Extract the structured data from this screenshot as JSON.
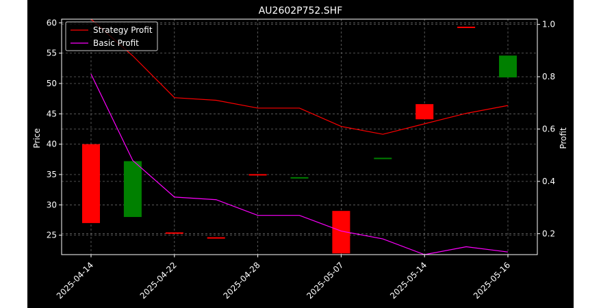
{
  "chart_data": {
    "type": "candlestick-line",
    "title": "AU2602P752.SHF",
    "ylabel_left": "Price",
    "ylabel_right": "Profit",
    "ylim_left": [
      21.8,
      60.6
    ],
    "ylim_right": [
      0.12,
      1.02
    ],
    "yticks_left": [
      25,
      30,
      35,
      40,
      45,
      50,
      55,
      60
    ],
    "yticks_right": [
      0.2,
      0.4,
      0.6,
      0.8,
      1.0
    ],
    "x_tick_labels": [
      "2025-04-14",
      "2025-04-22",
      "2025-04-28",
      "2025-05-07",
      "2025-05-14",
      "2025-05-16"
    ],
    "x_tick_index": [
      0,
      2,
      4,
      6,
      8,
      10
    ],
    "candles": [
      {
        "open": 40.0,
        "close": 27.0,
        "color": "#ff0000"
      },
      {
        "open": 28.0,
        "close": 37.2,
        "color": "#008000"
      },
      {
        "open": 25.4,
        "close": 25.3,
        "color": "#ff0000"
      },
      {
        "open": 24.6,
        "close": 24.5,
        "color": "#ff0000"
      },
      {
        "open": 35.0,
        "close": 34.9,
        "color": "#ff0000"
      },
      {
        "open": 34.4,
        "close": 34.5,
        "color": "#008000"
      },
      {
        "open": 29.0,
        "close": 22.0,
        "color": "#ff0000"
      },
      {
        "open": 37.6,
        "close": 37.7,
        "color": "#008000"
      },
      {
        "open": 46.6,
        "close": 44.1,
        "color": "#ff0000"
      },
      {
        "open": 59.3,
        "close": 59.2,
        "color": "#ff0000"
      },
      {
        "open": 51.0,
        "close": 54.6,
        "color": "#008000"
      }
    ],
    "series": [
      {
        "name": "Strategy Profit",
        "color": "#ff0000",
        "values": [
          1.02,
          0.88,
          0.72,
          0.71,
          0.68,
          0.68,
          0.61,
          0.58,
          0.62,
          0.66,
          0.69
        ]
      },
      {
        "name": "Basic Profit",
        "color": "#ff00ff",
        "values": [
          0.81,
          0.48,
          0.34,
          0.33,
          0.27,
          0.27,
          0.21,
          0.18,
          0.12,
          0.15,
          0.13
        ]
      }
    ],
    "grid": true,
    "legend": "top-left"
  }
}
